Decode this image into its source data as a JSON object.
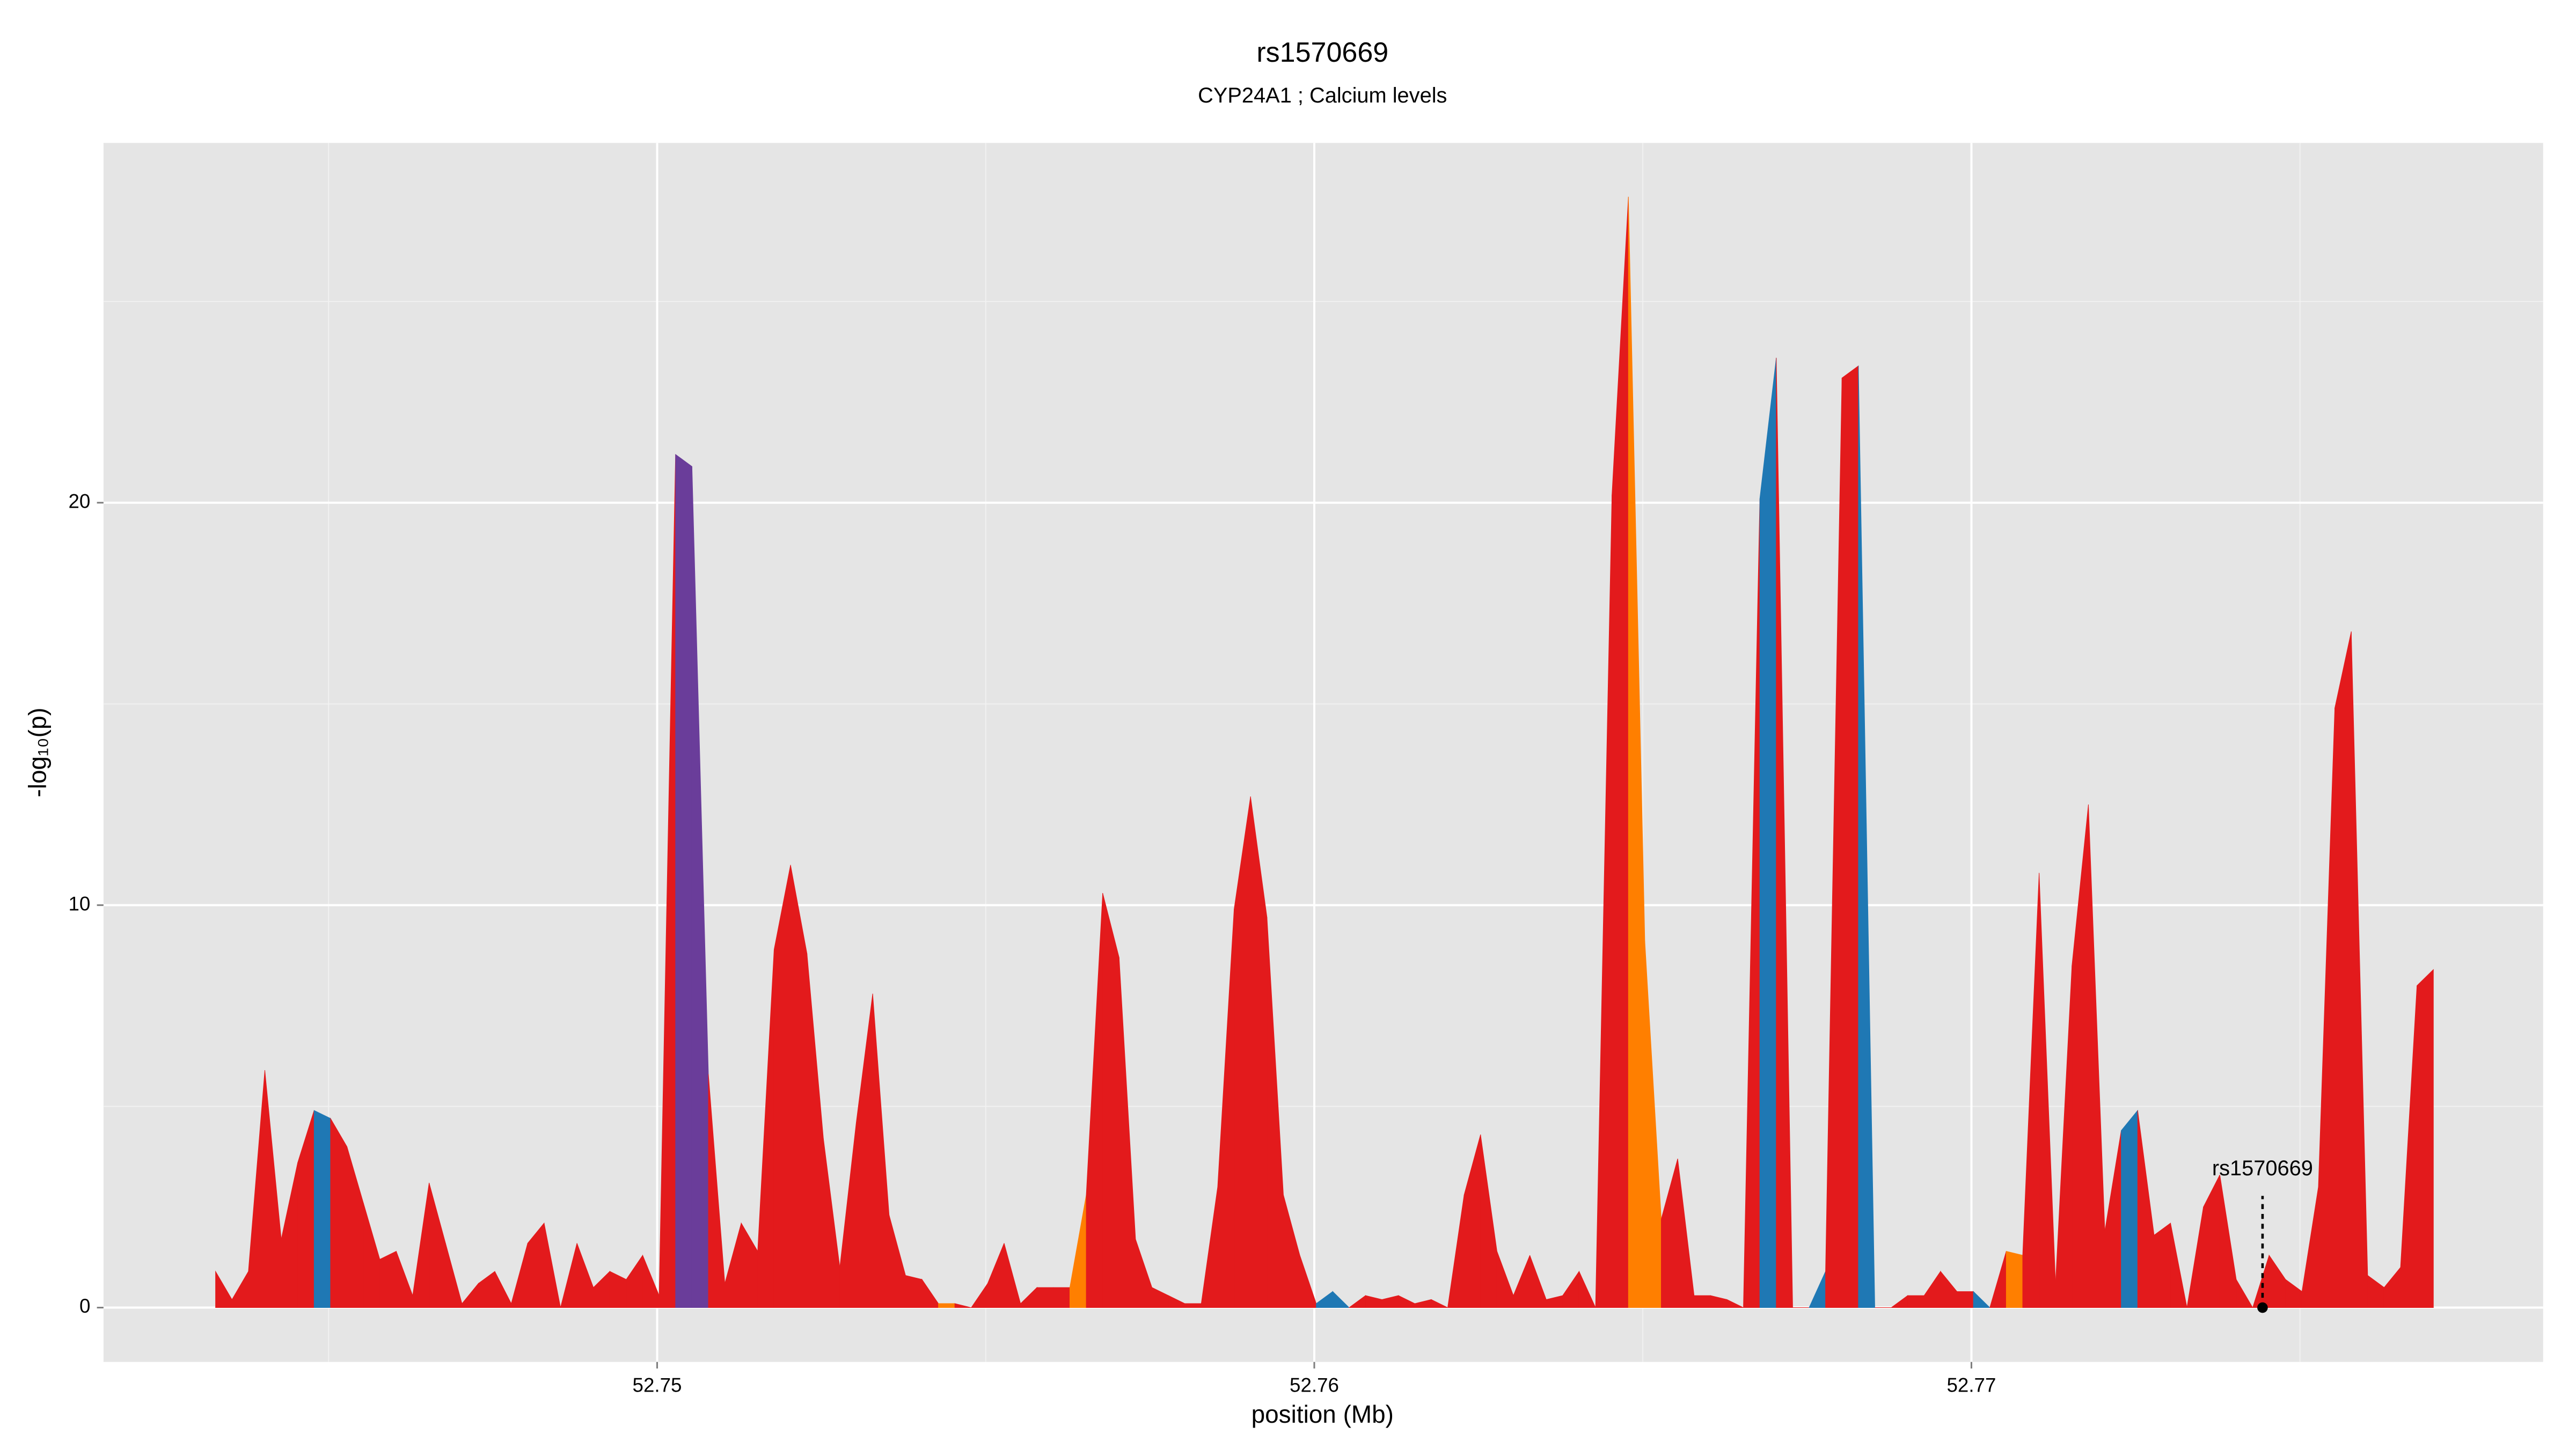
{
  "chart_data": {
    "type": "area",
    "title": "rs1570669",
    "subtitle": "CYP24A1 ; Calcium levels",
    "x_label": "position (Mb)",
    "y_label": "-log₁₀(p)",
    "xlim": [
      52.741575,
      52.7787
    ],
    "ylim": [
      -1.35,
      28.94
    ],
    "xticks": [
      52.75,
      52.76,
      52.77
    ],
    "yticks": [
      0,
      10,
      20
    ],
    "x_minor_grid": [
      52.745,
      52.755,
      52.765,
      52.775
    ],
    "y_minor_grid": [
      5,
      15,
      25
    ],
    "grid": true,
    "x": [
      52.74328,
      52.74353,
      52.74378,
      52.74403,
      52.74428,
      52.74453,
      52.74478,
      52.74503,
      52.74528,
      52.74553,
      52.74578,
      52.74603,
      52.74628,
      52.74653,
      52.74678,
      52.74703,
      52.74728,
      52.74753,
      52.74778,
      52.74803,
      52.74828,
      52.74853,
      52.74878,
      52.74903,
      52.74928,
      52.74953,
      52.74978,
      52.75003,
      52.75028,
      52.75053,
      52.75078,
      52.75103,
      52.75128,
      52.75153,
      52.75178,
      52.75203,
      52.75228,
      52.75253,
      52.75278,
      52.75303,
      52.75328,
      52.75353,
      52.75378,
      52.75403,
      52.75428,
      52.75453,
      52.75478,
      52.75503,
      52.75528,
      52.75553,
      52.75578,
      52.75603,
      52.75628,
      52.75653,
      52.75678,
      52.75703,
      52.75728,
      52.75753,
      52.75778,
      52.75803,
      52.75828,
      52.75853,
      52.75878,
      52.75903,
      52.75928,
      52.75953,
      52.75978,
      52.76003,
      52.76028,
      52.76053,
      52.76078,
      52.76103,
      52.76128,
      52.76153,
      52.76178,
      52.76203,
      52.76228,
      52.76253,
      52.76278,
      52.76303,
      52.76328,
      52.76353,
      52.76378,
      52.76403,
      52.76428,
      52.76453,
      52.76478,
      52.76503,
      52.76528,
      52.76553,
      52.76578,
      52.76603,
      52.76628,
      52.76653,
      52.76678,
      52.76703,
      52.76728,
      52.76753,
      52.76778,
      52.76803,
      52.76828,
      52.76853,
      52.76878,
      52.76903,
      52.76928,
      52.76953,
      52.76978,
      52.77003,
      52.77028,
      52.77053,
      52.77078,
      52.77103,
      52.77128,
      52.77153,
      52.77178,
      52.77203,
      52.77228,
      52.77253,
      52.77278,
      52.77303,
      52.77328,
      52.77353,
      52.77378,
      52.77403,
      52.77428,
      52.77453,
      52.77478,
      52.77503,
      52.77528,
      52.77553,
      52.77578,
      52.77603,
      52.77628,
      52.77653,
      52.77678,
      52.77703
    ],
    "values": [
      0.9,
      0.2,
      0.9,
      5.9,
      1.7,
      3.6,
      4.9,
      4.7,
      4.0,
      2.6,
      1.2,
      1.4,
      0.3,
      3.1,
      1.6,
      0.1,
      0.6,
      0.9,
      0.1,
      1.6,
      2.1,
      0.0,
      1.6,
      0.5,
      0.9,
      0.7,
      1.3,
      0.3,
      21.2,
      20.9,
      5.8,
      0.6,
      2.1,
      1.4,
      8.9,
      11.0,
      8.8,
      4.2,
      1.0,
      4.6,
      7.8,
      2.3,
      0.8,
      0.7,
      0.1,
      0.1,
      0.0,
      0.6,
      1.6,
      0.1,
      0.5,
      0.5,
      0.5,
      2.8,
      10.3,
      8.7,
      1.7,
      0.5,
      0.3,
      0.1,
      0.1,
      3.0,
      9.9,
      12.7,
      9.7,
      2.8,
      1.3,
      0.1,
      0.4,
      0.0,
      0.3,
      0.2,
      0.3,
      0.1,
      0.2,
      0.0,
      2.8,
      4.3,
      1.4,
      0.3,
      1.3,
      0.2,
      0.3,
      0.9,
      0.0,
      20.2,
      27.6,
      9.1,
      2.2,
      3.7,
      0.3,
      0.3,
      0.2,
      0.0,
      20.1,
      23.6,
      0.0,
      0.0,
      0.9,
      23.1,
      23.4,
      0.0,
      0.0,
      0.3,
      0.3,
      0.9,
      0.4,
      0.4,
      0.0,
      1.4,
      1.3,
      10.8,
      0.6,
      8.5,
      12.5,
      1.9,
      4.4,
      4.9,
      1.8,
      2.1,
      0.0,
      2.5,
      3.3,
      0.7,
      0.0,
      1.3,
      0.7,
      0.4,
      3.0,
      14.9,
      16.8,
      0.8,
      0.5,
      1.0,
      8.0,
      8.4
    ],
    "colors": [
      "#e31a1c",
      "#e31a1c",
      "#e31a1c",
      "#e31a1c",
      "#e31a1c",
      "#e31a1c",
      "#1f78b4",
      "#e31a1c",
      "#e31a1c",
      "#e31a1c",
      "#e31a1c",
      "#e31a1c",
      "#e31a1c",
      "#e31a1c",
      "#e31a1c",
      "#e31a1c",
      "#e31a1c",
      "#e31a1c",
      "#e31a1c",
      "#e31a1c",
      "#e31a1c",
      "#e31a1c",
      "#e31a1c",
      "#e31a1c",
      "#e31a1c",
      "#e31a1c",
      "#e31a1c",
      "#e31a1c",
      "#6a3d9a",
      "#6a3d9a",
      "#e31a1c",
      "#e31a1c",
      "#e31a1c",
      "#e31a1c",
      "#e31a1c",
      "#e31a1c",
      "#e31a1c",
      "#e31a1c",
      "#e31a1c",
      "#e31a1c",
      "#e31a1c",
      "#e31a1c",
      "#e31a1c",
      "#e31a1c",
      "#ff7f00",
      "#e31a1c",
      "#e31a1c",
      "#e31a1c",
      "#e31a1c",
      "#e31a1c",
      "#e31a1c",
      "#e31a1c",
      "#ff7f00",
      "#e31a1c",
      "#e31a1c",
      "#e31a1c",
      "#e31a1c",
      "#e31a1c",
      "#e31a1c",
      "#e31a1c",
      "#e31a1c",
      "#e31a1c",
      "#e31a1c",
      "#e31a1c",
      "#e31a1c",
      "#e31a1c",
      "#e31a1c",
      "#1f78b4",
      "#1f78b4",
      "#e31a1c",
      "#e31a1c",
      "#e31a1c",
      "#e31a1c",
      "#e31a1c",
      "#e31a1c",
      "#e31a1c",
      "#e31a1c",
      "#e31a1c",
      "#e31a1c",
      "#e31a1c",
      "#e31a1c",
      "#e31a1c",
      "#e31a1c",
      "#e31a1c",
      "#e31a1c",
      "#e31a1c",
      "#ff7f00",
      "#ff7f00",
      "#e31a1c",
      "#e31a1c",
      "#e31a1c",
      "#e31a1c",
      "#e31a1c",
      "#e31a1c",
      "#1f78b4",
      "#e31a1c",
      "#e31a1c",
      "#1f78b4",
      "#e31a1c",
      "#e31a1c",
      "#1f78b4",
      "#e31a1c",
      "#e31a1c",
      "#e31a1c",
      "#e31a1c",
      "#e31a1c",
      "#e31a1c",
      "#1f78b4",
      "#e31a1c",
      "#ff7f00",
      "#e31a1c",
      "#e31a1c",
      "#e31a1c",
      "#e31a1c",
      "#e31a1c",
      "#e31a1c",
      "#1f78b4",
      "#e31a1c",
      "#e31a1c",
      "#e31a1c",
      "#e31a1c",
      "#e31a1c",
      "#e31a1c",
      "#e31a1c",
      "#e31a1c",
      "#e31a1c",
      "#e31a1c",
      "#e31a1c",
      "#e31a1c",
      "#e31a1c",
      "#e31a1c",
      "#e31a1c",
      "#e31a1c",
      "#e31a1c",
      "#e31a1c",
      "#e31a1c"
    ],
    "annotation": {
      "text": "rs1570669",
      "x": 52.77443,
      "y": 0
    }
  }
}
